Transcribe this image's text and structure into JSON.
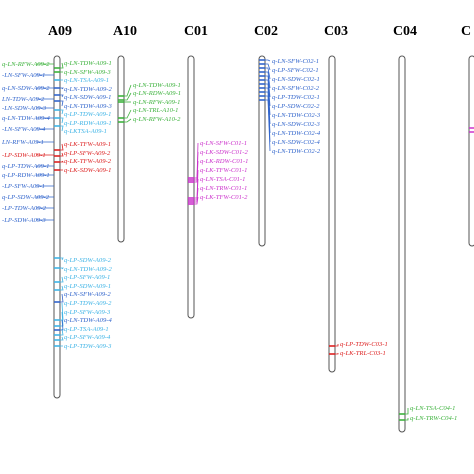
{
  "colors": {
    "green": "#3db23d",
    "blue": "#3366cc",
    "cyan": "#3fb4e6",
    "red": "#dd2222",
    "magenta": "#cc33cc",
    "chromosome": "#555555"
  },
  "chromosomes": [
    {
      "id": "A09",
      "label": "A09",
      "qtls": [
        {
          "name": "q-LN-TDW-A09-1",
          "color": "green"
        },
        {
          "name": "q-LN-SFW-A09-3",
          "color": "green"
        },
        {
          "name": "q-LN-TSA-A09-1",
          "color": "cyan"
        },
        {
          "name": "q-LN-TDW-A09-2",
          "color": "blue"
        },
        {
          "name": "q-LN-SDW-A09-1",
          "color": "blue"
        },
        {
          "name": "q-LN-TDW-A09-3",
          "color": "blue"
        },
        {
          "name": "q-LP-TDW-A09-1",
          "color": "cyan"
        },
        {
          "name": "q-LP-RDW-A09-1",
          "color": "cyan"
        },
        {
          "name": "q-LKTSA-A09-1",
          "color": "cyan"
        },
        {
          "name": "q-LK-TFW-A09-1",
          "color": "red"
        },
        {
          "name": "q-LP-SFW-A09-2",
          "color": "red"
        },
        {
          "name": "q-LK-TFW-A09-2",
          "color": "red"
        },
        {
          "name": "q-LK-SDW-A09-1",
          "color": "red"
        },
        {
          "name": "q-LP-SDW-A09-2",
          "color": "cyan"
        },
        {
          "name": "q-LN-TDW-A09-2",
          "color": "cyan"
        },
        {
          "name": "q-LP-SFW-A09-1",
          "color": "cyan"
        },
        {
          "name": "q-LP-SDW-A09-1",
          "color": "cyan"
        },
        {
          "name": "q-LN-SFW-A09-2",
          "color": "blue"
        },
        {
          "name": "q-LP-TDW-A09-2",
          "color": "cyan"
        },
        {
          "name": "q-LP-SFW-A09-3",
          "color": "cyan"
        },
        {
          "name": "q-LN-TDW-A09-4",
          "color": "blue"
        },
        {
          "name": "q-LP-TSA-A09-1",
          "color": "cyan"
        },
        {
          "name": "q-LP-SFW-A09-4",
          "color": "cyan"
        },
        {
          "name": "q-LP-TDW-A09-3",
          "color": "cyan"
        }
      ]
    },
    {
      "id": "A10",
      "label": "A10",
      "qtls": [
        {
          "name": "q-LN-TDW-A09-1",
          "color": "green"
        },
        {
          "name": "q-LN-RDW-A09-1",
          "color": "green"
        },
        {
          "name": "q-LN-RFW-A09-1",
          "color": "green"
        },
        {
          "name": "q-LN-TRL-A10-1",
          "color": "green"
        },
        {
          "name": "q-LN-RFW-A10-2",
          "color": "green"
        }
      ]
    },
    {
      "id": "C01",
      "label": "C01",
      "qtls": [
        {
          "name": "q-LN-SFW-C01-1",
          "color": "magenta"
        },
        {
          "name": "q-LK-SDW-C01-2",
          "color": "magenta"
        },
        {
          "name": "q-LK-RDW-C01-1",
          "color": "magenta"
        },
        {
          "name": "q-LK-TFW-C01-1",
          "color": "magenta"
        },
        {
          "name": "q-LN-TSA-C01-1",
          "color": "magenta"
        },
        {
          "name": "q-LN-TRW-C01-1",
          "color": "magenta"
        },
        {
          "name": "q-LK-TFW-C01-2",
          "color": "magenta"
        }
      ]
    },
    {
      "id": "C02",
      "label": "C02",
      "qtls": [
        {
          "name": "q-LN-SFW-C02-1",
          "color": "blue"
        },
        {
          "name": "q-LP-SFW-C02-1",
          "color": "blue"
        },
        {
          "name": "q-LN-SDW-C02-1",
          "color": "blue"
        },
        {
          "name": "q-LN-SFW-C02-2",
          "color": "blue"
        },
        {
          "name": "q-LP-TDW-C02-1",
          "color": "blue"
        },
        {
          "name": "q-LP-SDW-C02-2",
          "color": "blue"
        },
        {
          "name": "q-LN-TDW-C02-3",
          "color": "blue"
        },
        {
          "name": "q-LN-SDW-C02-3",
          "color": "blue"
        },
        {
          "name": "q-LN-TDW-C02-4",
          "color": "blue"
        },
        {
          "name": "q-LN-SDW-C02-4",
          "color": "blue"
        },
        {
          "name": "q-LN-TDW-C02-2",
          "color": "blue"
        }
      ]
    },
    {
      "id": "C03",
      "label": "C03",
      "qtls": [
        {
          "name": "q-LP-TDW-C03-1",
          "color": "red"
        },
        {
          "name": "q-LK-TRL-C03-1",
          "color": "red"
        }
      ]
    },
    {
      "id": "C04",
      "label": "C04",
      "qtls": [
        {
          "name": "q-LN-TSA-C04-1",
          "color": "green"
        },
        {
          "name": "q-LN-TRW-C04-1",
          "color": "green"
        }
      ]
    },
    {
      "id": "C05",
      "label": "C",
      "qtls": []
    }
  ],
  "left_clipped_labels": [
    {
      "name": "q-LN-RFW-A09-2",
      "color": "green"
    },
    {
      "name": "-LN-SFW-A09-1",
      "color": "blue"
    },
    {
      "name": "q-LN-SDW-A09-2",
      "color": "blue"
    },
    {
      "name": "LN-TDW-A09-2",
      "color": "blue"
    },
    {
      "name": "-LN-SDW-A09-3",
      "color": "blue"
    },
    {
      "name": "q-LN-TDW-A09-4",
      "color": "blue"
    },
    {
      "name": "-LN-SFW-A09-4",
      "color": "blue"
    },
    {
      "name": "LN-RFW-A09-1",
      "color": "blue"
    },
    {
      "name": "-LP-SDW-A09-1",
      "color": "red"
    },
    {
      "name": "q-LP-TDW-A09-1",
      "color": "blue"
    },
    {
      "name": "q-LP-RDW-A09-1",
      "color": "blue"
    },
    {
      "name": "-LP-SFW-A09-1",
      "color": "blue"
    },
    {
      "name": "q-LP-SDW-A09-2",
      "color": "blue"
    },
    {
      "name": "-LP-TDW-A09-2",
      "color": "blue"
    },
    {
      "name": "-LP-SDW-A09-3",
      "color": "blue"
    }
  ]
}
